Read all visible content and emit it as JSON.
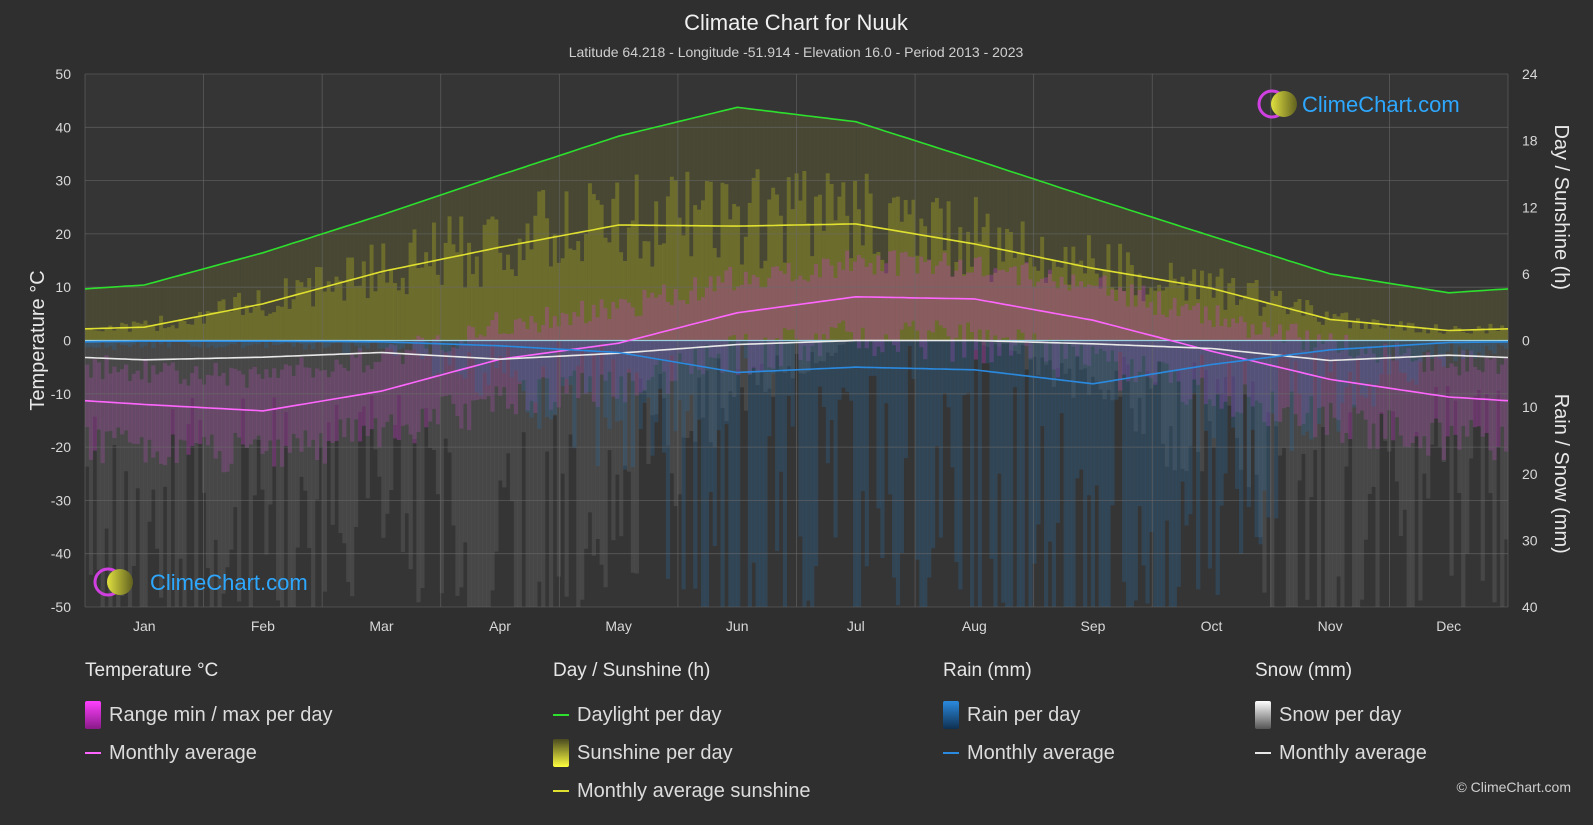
{
  "title": "Climate Chart for Nuuk",
  "subtitle": "Latitude 64.218 - Longitude -51.914 - Elevation 16.0 - Period 2013 - 2023",
  "brand": "ClimeChart.com",
  "copyright": "© ClimeChart.com",
  "colors": {
    "daylight": "#2ee02e",
    "sunshine": "#e0e030",
    "temp_avg": "#ff66ff",
    "temp_range": "#c030c0",
    "rain": "#2a8ae0",
    "snow": "#e8e8e8",
    "brand": "#2ea8ff"
  },
  "chart_data": {
    "type": "line",
    "categories": [
      "Jan",
      "Feb",
      "Mar",
      "Apr",
      "May",
      "Jun",
      "Jul",
      "Aug",
      "Sep",
      "Oct",
      "Nov",
      "Dec"
    ],
    "left_axis": {
      "label": "Temperature °C",
      "range": [
        -50,
        50
      ],
      "ticks": [
        "50",
        "40",
        "30",
        "20",
        "10",
        "0",
        "-10",
        "-20",
        "-30",
        "-40",
        "-50"
      ]
    },
    "right_axis_top": {
      "label": "Day / Sunshine (h)",
      "range": [
        0,
        24
      ],
      "ticks": [
        "24",
        "18",
        "12",
        "6",
        "0"
      ]
    },
    "right_axis_bottom": {
      "label": "Rain / Snow (mm)",
      "range": [
        0,
        40
      ],
      "ticks": [
        "10",
        "20",
        "30",
        "40"
      ]
    },
    "series": [
      {
        "name": "Daylight per day",
        "unit": "h",
        "values": [
          5.0,
          7.9,
          11.3,
          14.9,
          18.4,
          21.0,
          19.7,
          16.3,
          12.8,
          9.4,
          6.0,
          4.3
        ]
      },
      {
        "name": "Monthly average sunshine",
        "unit": "h",
        "values": [
          1.2,
          3.3,
          6.2,
          8.4,
          10.4,
          10.3,
          10.5,
          8.7,
          6.5,
          4.7,
          1.9,
          0.9
        ]
      },
      {
        "name": "Temperature monthly average",
        "unit": "°C",
        "values": [
          -12.0,
          -13.2,
          -9.5,
          -3.5,
          -0.5,
          5.2,
          8.2,
          7.8,
          3.8,
          -2.0,
          -7.3,
          -10.6
        ]
      },
      {
        "name": "Rain monthly average",
        "unit": "mm",
        "values": [
          0.1,
          0.1,
          0.2,
          0.8,
          1.8,
          4.8,
          4.0,
          4.4,
          6.5,
          3.6,
          1.4,
          0.3
        ]
      },
      {
        "name": "Snow monthly average",
        "unit": "mm",
        "values": [
          2.9,
          2.5,
          1.8,
          2.8,
          1.9,
          0.6,
          0.0,
          0.0,
          0.5,
          1.2,
          3.0,
          2.2
        ]
      }
    ]
  },
  "legend": {
    "temperature": {
      "title": "Temperature °C",
      "items": [
        "Range min / max per day",
        "Monthly average"
      ]
    },
    "sunshine": {
      "title": "Day / Sunshine (h)",
      "items": [
        "Daylight per day",
        "Sunshine per day",
        "Monthly average sunshine"
      ]
    },
    "rain": {
      "title": "Rain (mm)",
      "items": [
        "Rain per day",
        "Monthly average"
      ]
    },
    "snow": {
      "title": "Snow (mm)",
      "items": [
        "Snow per day",
        "Monthly average"
      ]
    }
  }
}
